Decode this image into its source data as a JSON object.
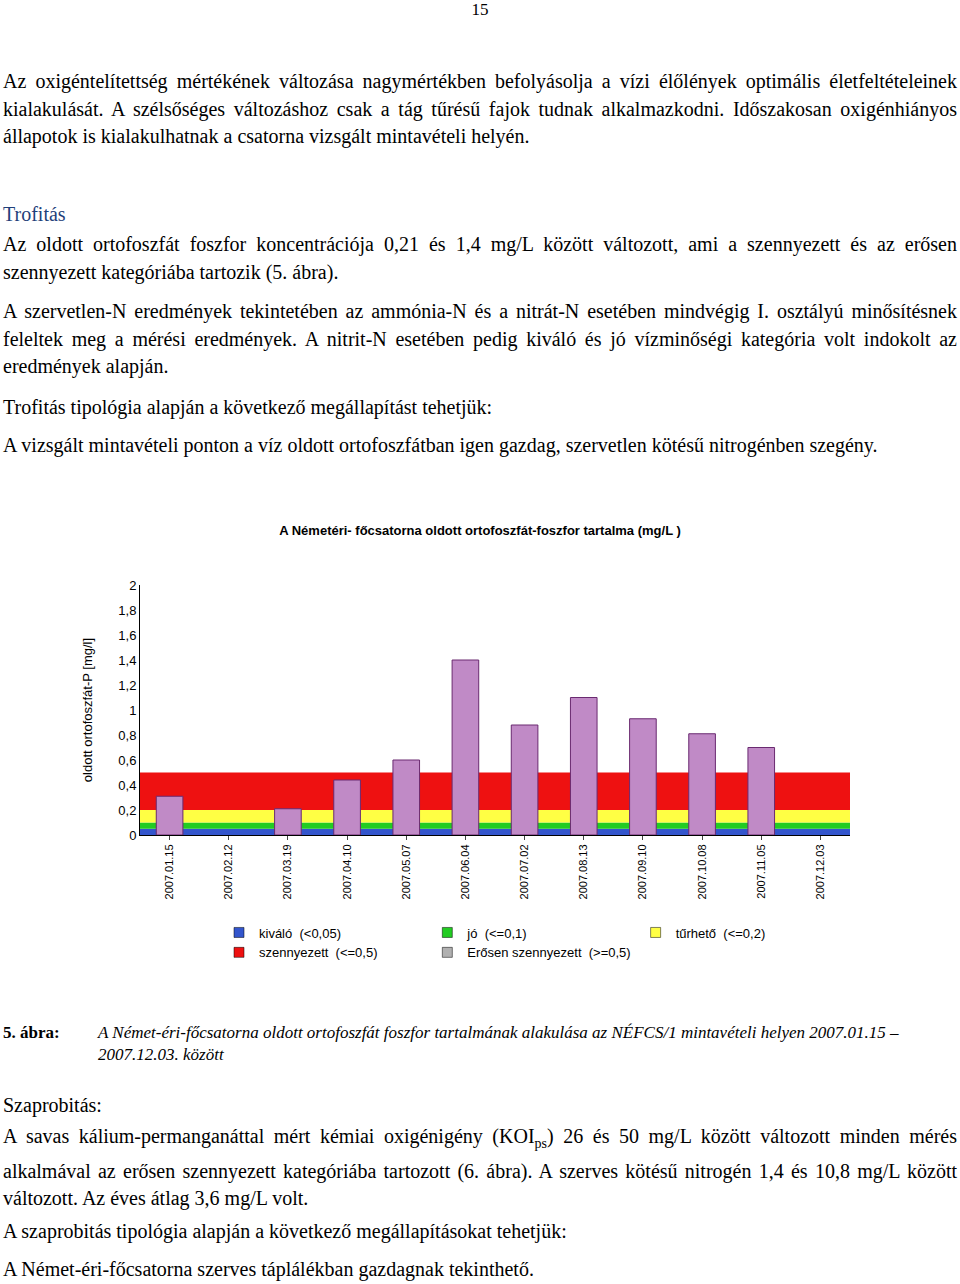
{
  "page_number": "15",
  "before_chart": [
    {
      "p": "Az oxigéntelítettség mértékének változása nagymértékben befolyásolja a vízi élőlények optimális életfeltételeinek kialakulását. A szélsőséges változáshoz csak a tág tűrésű fajok tudnak alkalmazkodni. Időszakosan oxigénhiányos állapotok is kialakulhatnak a csatorna vizsgált mintavételi helyén."
    },
    {
      "heading": "Trofitás"
    },
    {
      "p": "Az oldott ortofoszfát foszfor koncentrációja 0,21 és 1,4 mg/L között változott, ami a szennyezett és az erősen szennyezett kategóriába tartozik (5. ábra)."
    },
    {
      "p": "A szervetlen-N eredmények tekintetében az ammónia-N és a nitrát-N esetében mindvégig I. osztályú minősítésnek feleltek meg a mérési eredmények. A nitrit-N esetében pedig kiváló és jó vízminőségi kategória volt indokolt az eredmények alapján."
    },
    {
      "p": "Trofitás tipológia alapján a következő megállapítást tehetjük:"
    },
    {
      "p": "A vizsgált mintavételi ponton a víz oldott ortofoszfátban igen gazdag, szervetlen kötésű nitrogénben szegény."
    }
  ],
  "chart_data": {
    "type": "bar",
    "title": "A Németéri- főcsatorna oldott ortofoszfát-foszfor tartalma (mg/L )",
    "y_label": "oldott ortofoszfát-P [mg/l]",
    "categories": [
      "2007.01.15",
      "2007.02.12",
      "2007.03.19",
      "2007.04.10",
      "2007.05.07",
      "2007.06.04",
      "2007.07.02",
      "2007.08.13",
      "2007.09.10",
      "2007.10.08",
      "2007.11.05",
      "2007.12.03"
    ],
    "values": [
      0.31,
      null,
      0.21,
      0.44,
      0.6,
      1.4,
      0.88,
      1.1,
      0.93,
      0.81,
      0.7,
      null
    ],
    "color": "#c08ac6",
    "ylim": [
      0,
      2
    ],
    "yticks": [
      0,
      {
        "value": 0.2,
        "label": "0,2"
      },
      {
        "value": 0.4,
        "label": "0,4"
      },
      {
        "value": 0.6,
        "label": "0,6"
      },
      {
        "value": 0.8,
        "label": "0,8"
      },
      1,
      {
        "value": 1.2,
        "label": "1,2"
      },
      {
        "value": 1.4,
        "label": "1,4"
      },
      {
        "value": 1.6,
        "label": "1,6"
      },
      {
        "value": 1.8,
        "label": "1,8"
      },
      2
    ],
    "grid": false,
    "legend": "bottom",
    "bands": [
      {
        "name": "kiváló  (<0,05)",
        "color": "#3355cc",
        "from": 0,
        "to": 0.05
      },
      {
        "name": "jó  (<=0,1)",
        "color": "#22cc22",
        "from": 0.05,
        "to": 0.1
      },
      {
        "name": "tűrhető  (<=0,2)",
        "color": "#ffff44",
        "from": 0.1,
        "to": 0.2
      },
      {
        "name": "szennyezett  (<=0,5)",
        "color": "#ee1111",
        "from": 0.2,
        "to": 0.5
      },
      {
        "name": "Erősen szennyezett  (>=0,5)",
        "color": "#b0b0b0",
        "from": 0.5,
        "to": null
      }
    ]
  },
  "caption": {
    "label": "5. ábra:",
    "text": "A Német-éri-főcsatorna oldott ortofoszfát foszfor tartalmának alakulása az NÉFCS/1 mintavételi helyen 2007.01.15 – 2007.12.03. között"
  },
  "after_chart": [
    {
      "label": "Szaprobitás:"
    },
    {
      "p": [
        {
          "text": "A savas kálium-permanganáttal mért kémiai oxigénigény (KOI"
        },
        {
          "text": "ps",
          "sub": true
        },
        {
          "text": ") 26 és 50 mg/L között változott minden mérés alkalmával az erősen szennyezett kategóriába tartozott (6. ábra). A szerves kötésű nitrogén 1,4 és 10,8 mg/L között változott. Az éves átlag 3,6 mg/L volt."
        }
      ]
    },
    {
      "p": "A szaprobitás tipológia alapján a következő megállapításokat tehetjük:"
    },
    {
      "p": "A Német-éri-főcsatorna szerves táplálékban gazdagnak tekinthető."
    }
  ]
}
